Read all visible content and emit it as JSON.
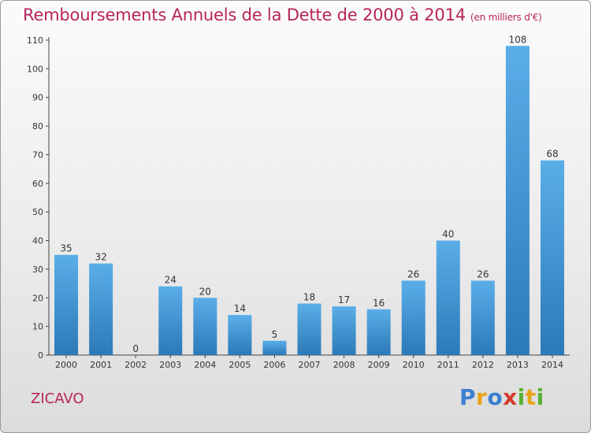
{
  "header": {
    "title": "Remboursements Annuels de la Dette de 2000 à 2014",
    "unit": "(en milliers d'€)"
  },
  "footer": {
    "commune": "ZICAVO",
    "brand": "Proxiti",
    "brand_letters": [
      "P",
      "r",
      "o",
      "x",
      "i",
      "t",
      "i"
    ],
    "brand_colors": [
      "#3a7fd0",
      "#e8a418",
      "#3a7fd0",
      "#d43a2a",
      "#58b030",
      "#e8a418",
      "#58b030"
    ]
  },
  "colors": {
    "accent": "#b8245c",
    "bar_top": "#5aaee8",
    "bar_bottom": "#2c79b8"
  },
  "chart_data": {
    "type": "bar",
    "title": "Remboursements Annuels de la Dette de 2000 à 2014",
    "categories": [
      "2000",
      "2001",
      "2002",
      "2003",
      "2004",
      "2005",
      "2006",
      "2007",
      "2008",
      "2009",
      "2010",
      "2011",
      "2012",
      "2013",
      "2014"
    ],
    "values": [
      35,
      32,
      0,
      24,
      20,
      14,
      5,
      18,
      17,
      16,
      26,
      40,
      26,
      108,
      68
    ],
    "ylim": [
      0,
      110
    ],
    "yticks": [
      0,
      10,
      20,
      30,
      40,
      50,
      60,
      70,
      80,
      90,
      100,
      110
    ],
    "grid": false,
    "xlabel": "",
    "ylabel": ""
  }
}
